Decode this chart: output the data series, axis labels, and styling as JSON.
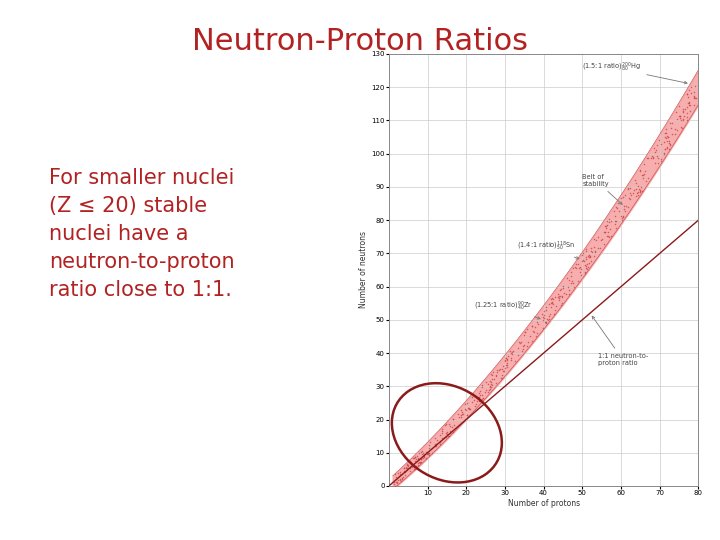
{
  "title": "Neutron-Proton Ratios",
  "title_color": "#B22222",
  "title_fontsize": 22,
  "body_text": "For smaller nuclei\n(Z ≤ 20) stable\nnuclei have a\nneutron-to-proton\nratio close to 1:1.",
  "body_text_color": "#B22222",
  "body_fontsize": 15,
  "xlabel": "Number of protons",
  "ylabel": "Number of neutrons",
  "xlim": [
    0,
    80
  ],
  "ylim": [
    0,
    130
  ],
  "xticks": [
    10,
    20,
    30,
    40,
    50,
    60,
    70,
    80
  ],
  "yticks": [
    0,
    10,
    20,
    30,
    40,
    50,
    60,
    70,
    80,
    90,
    100,
    110,
    120,
    130
  ],
  "grid_color": "#cccccc",
  "belt_color": "#f5a0a0",
  "belt_edge_color": "#cc4444",
  "line_1to1_color": "#8B1A1A",
  "scatter_color": "#cc4444",
  "ellipse_color": "#8B1A1A",
  "annotation_color": "#444444",
  "bg_color": "#ffffff",
  "plot_bg_color": "#ffffff"
}
